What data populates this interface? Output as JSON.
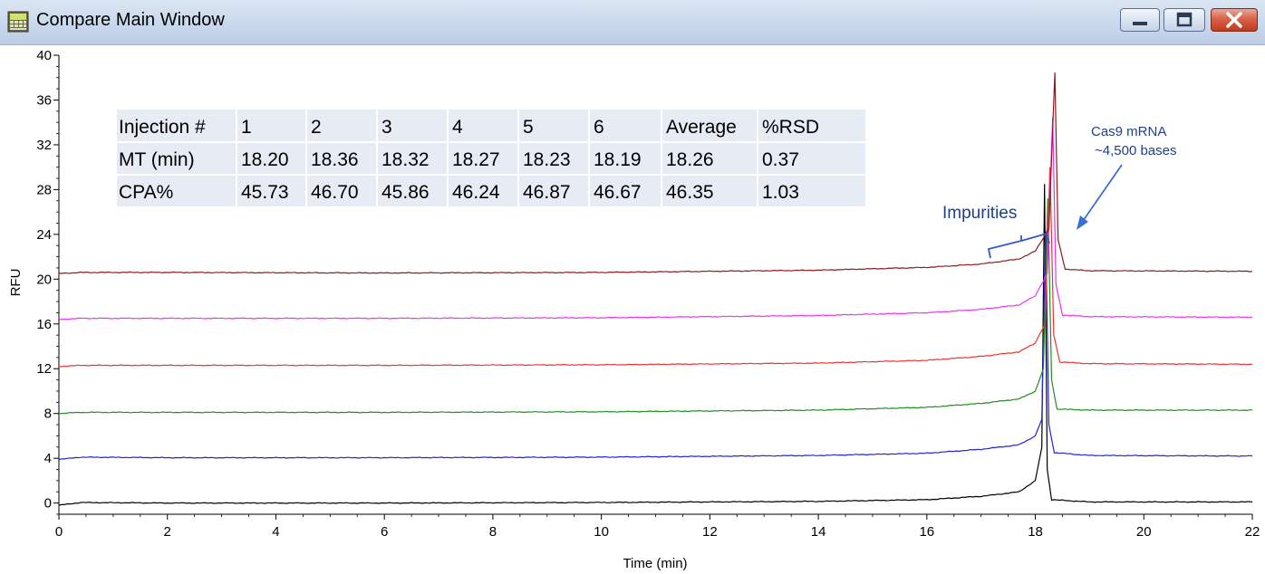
{
  "window": {
    "title": "Compare Main Window",
    "icon": "app-window-icon",
    "buttons": {
      "minimize": "minimize-icon",
      "maximize": "maximize-icon",
      "close": "close-icon"
    }
  },
  "chart_data": {
    "type": "line",
    "xlabel": "Time (min)",
    "ylabel": "RFU",
    "xlim": [
      0,
      22
    ],
    "ylim": [
      -1,
      40
    ],
    "x_ticks": [
      0,
      2,
      4,
      6,
      8,
      10,
      12,
      14,
      16,
      18,
      20,
      22
    ],
    "y_ticks": [
      0,
      4,
      8,
      12,
      16,
      20,
      24,
      28,
      32,
      36,
      40
    ],
    "grid": false,
    "series": [
      {
        "color": "#000000",
        "baseline": 0,
        "peak_x": 18.17,
        "peak_y": 28.5,
        "points": [
          [
            0,
            -0.2
          ],
          [
            0.4,
            0.05
          ],
          [
            2,
            0.0
          ],
          [
            6,
            0.0
          ],
          [
            10,
            0.05
          ],
          [
            14,
            0.15
          ],
          [
            16,
            0.3
          ],
          [
            17,
            0.6
          ],
          [
            17.7,
            1.0
          ],
          [
            18.0,
            2.0
          ],
          [
            18.12,
            5.0
          ],
          [
            18.17,
            28.5
          ],
          [
            18.22,
            3.0
          ],
          [
            18.3,
            0.3
          ],
          [
            19,
            0.1
          ],
          [
            22,
            0.1
          ]
        ]
      },
      {
        "color": "#2222dd",
        "baseline": 4,
        "peak_x": 18.19,
        "peak_y": 24.3,
        "points": [
          [
            0,
            3.9
          ],
          [
            0.4,
            4.1
          ],
          [
            2,
            4.05
          ],
          [
            6,
            4.05
          ],
          [
            10,
            4.1
          ],
          [
            14,
            4.25
          ],
          [
            16,
            4.45
          ],
          [
            17,
            4.8
          ],
          [
            17.7,
            5.2
          ],
          [
            18.0,
            6.0
          ],
          [
            18.12,
            7.5
          ],
          [
            18.19,
            24.3
          ],
          [
            18.25,
            7.0
          ],
          [
            18.35,
            4.5
          ],
          [
            19,
            4.25
          ],
          [
            22,
            4.2
          ]
        ]
      },
      {
        "color": "#1f8f1f",
        "baseline": 8,
        "peak_x": 18.23,
        "peak_y": 27.2,
        "points": [
          [
            0,
            8.0
          ],
          [
            0.4,
            8.1
          ],
          [
            2,
            8.1
          ],
          [
            6,
            8.1
          ],
          [
            10,
            8.15
          ],
          [
            14,
            8.3
          ],
          [
            16,
            8.55
          ],
          [
            17,
            8.9
          ],
          [
            17.7,
            9.3
          ],
          [
            18.0,
            10.0
          ],
          [
            18.15,
            12.0
          ],
          [
            18.23,
            27.2
          ],
          [
            18.3,
            11.0
          ],
          [
            18.4,
            8.4
          ],
          [
            19,
            8.3
          ],
          [
            22,
            8.3
          ]
        ]
      },
      {
        "color": "#ee3333",
        "baseline": 12,
        "peak_x": 18.27,
        "peak_y": 30.0,
        "points": [
          [
            0,
            12.2
          ],
          [
            0.4,
            12.3
          ],
          [
            2,
            12.3
          ],
          [
            6,
            12.3
          ],
          [
            10,
            12.35
          ],
          [
            14,
            12.5
          ],
          [
            16,
            12.75
          ],
          [
            17,
            13.1
          ],
          [
            17.7,
            13.5
          ],
          [
            18.0,
            14.3
          ],
          [
            18.18,
            16.0
          ],
          [
            18.27,
            30.0
          ],
          [
            18.34,
            15.0
          ],
          [
            18.45,
            12.6
          ],
          [
            19,
            12.45
          ],
          [
            22,
            12.4
          ]
        ]
      },
      {
        "color": "#ee33ee",
        "baseline": 16,
        "peak_x": 18.32,
        "peak_y": 34.5,
        "points": [
          [
            0,
            16.4
          ],
          [
            0.4,
            16.5
          ],
          [
            2,
            16.5
          ],
          [
            6,
            16.5
          ],
          [
            10,
            16.55
          ],
          [
            14,
            16.75
          ],
          [
            16,
            17.0
          ],
          [
            17,
            17.3
          ],
          [
            17.7,
            17.7
          ],
          [
            18.0,
            18.5
          ],
          [
            18.22,
            20.5
          ],
          [
            18.32,
            34.5
          ],
          [
            18.38,
            19.5
          ],
          [
            18.5,
            16.8
          ],
          [
            19,
            16.65
          ],
          [
            22,
            16.6
          ]
        ]
      },
      {
        "color": "#8b1a1a",
        "baseline": 20,
        "peak_x": 18.36,
        "peak_y": 38.5,
        "points": [
          [
            0,
            20.5
          ],
          [
            0.4,
            20.6
          ],
          [
            2,
            20.6
          ],
          [
            6,
            20.55
          ],
          [
            10,
            20.6
          ],
          [
            14,
            20.8
          ],
          [
            16,
            21.05
          ],
          [
            17,
            21.35
          ],
          [
            17.7,
            21.8
          ],
          [
            18.0,
            22.5
          ],
          [
            18.25,
            24.5
          ],
          [
            18.36,
            38.5
          ],
          [
            18.42,
            23.5
          ],
          [
            18.55,
            20.9
          ],
          [
            19,
            20.75
          ],
          [
            22,
            20.7
          ]
        ]
      }
    ]
  },
  "table": {
    "rows": [
      [
        "Injection #",
        "1",
        "2",
        "3",
        "4",
        "5",
        "6",
        "Average",
        "%RSD"
      ],
      [
        "MT (min)",
        "18.20",
        "18.36",
        "18.32",
        "18.27",
        "18.23",
        "18.19",
        "18.26",
        "0.37"
      ],
      [
        "CPA%",
        "45.73",
        "46.70",
        "45.86",
        "46.24",
        "46.87",
        "46.67",
        "46.35",
        "1.03"
      ]
    ]
  },
  "annotations": {
    "impurities": "Impurities",
    "cas9_line1": "Cas9 mRNA",
    "cas9_line2": "~4,500 bases",
    "color": "#1f3f8a"
  }
}
